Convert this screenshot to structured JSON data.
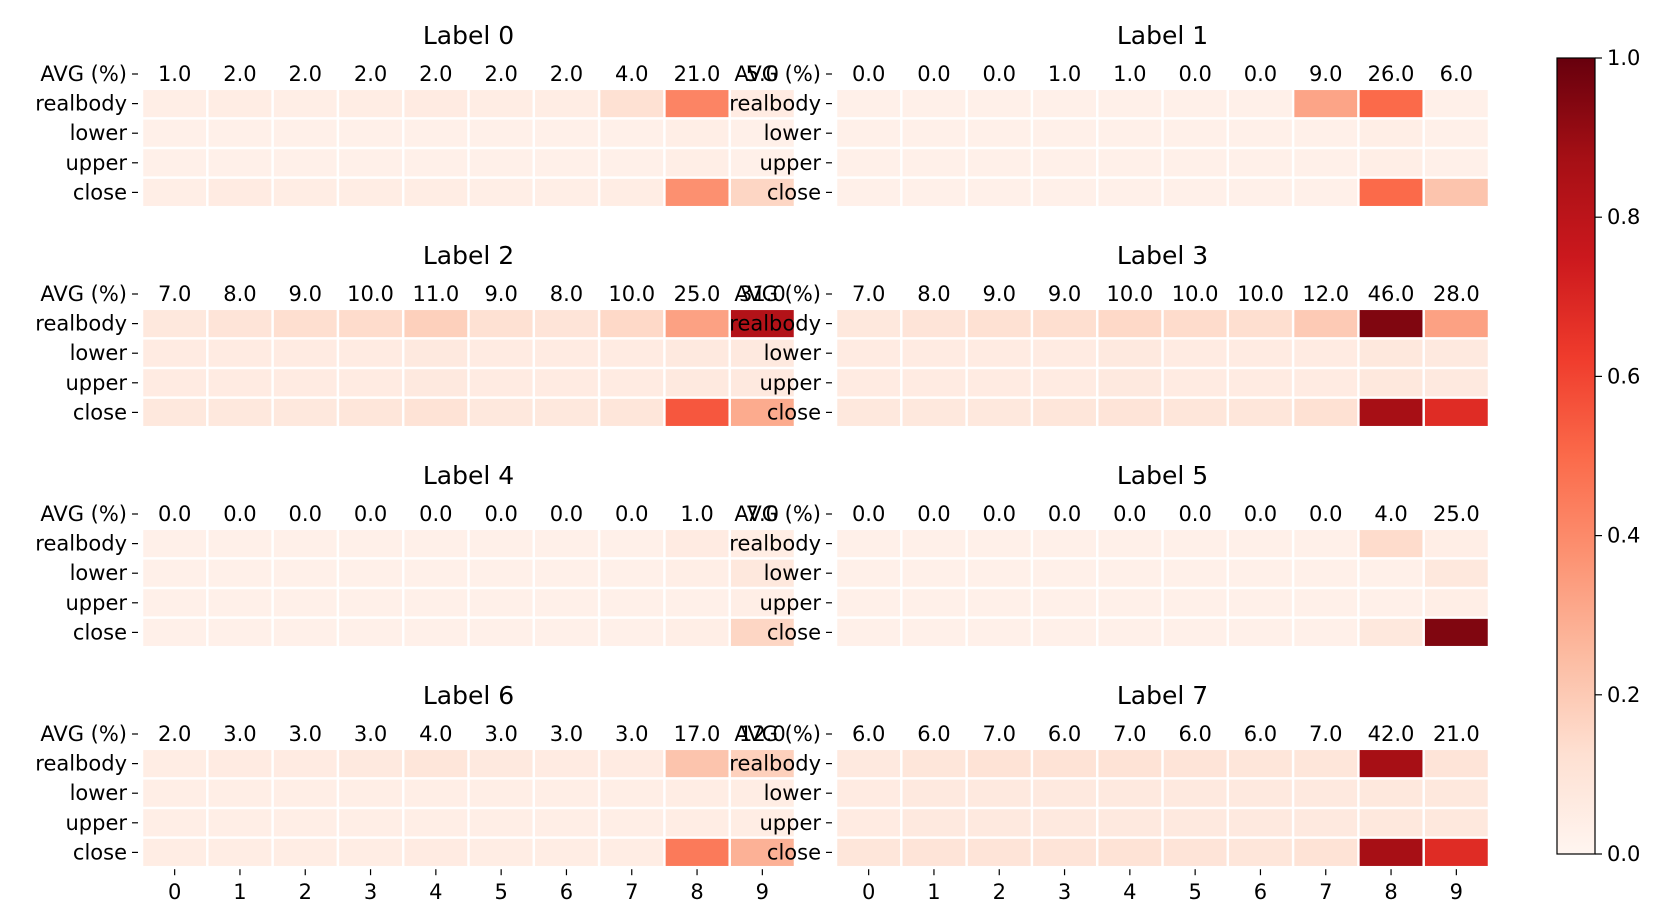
{
  "chart_data": {
    "type": "heatmap",
    "rows": [
      "AVG (%)",
      "realbody",
      "lower",
      "upper",
      "close"
    ],
    "x_ticks": [
      "0",
      "1",
      "2",
      "3",
      "4",
      "5",
      "6",
      "7",
      "8",
      "9"
    ],
    "colorscale": "Reds",
    "colorbar": {
      "range": [
        0.0,
        1.0
      ],
      "ticks": [
        {
          "value": 0.0,
          "label": "0.0"
        },
        {
          "value": 0.2,
          "label": "0.2"
        },
        {
          "value": 0.4,
          "label": "0.4"
        },
        {
          "value": 0.6,
          "label": "0.6"
        },
        {
          "value": 0.8,
          "label": "0.8"
        },
        {
          "value": 1.0,
          "label": "1.0"
        }
      ]
    },
    "panels": [
      {
        "title": "Label 0",
        "avg": [
          "1.0",
          "2.0",
          "2.0",
          "2.0",
          "2.0",
          "2.0",
          "2.0",
          "4.0",
          "21.0",
          "5.0"
        ],
        "values": [
          [
            0.04,
            0.05,
            0.04,
            0.05,
            0.06,
            0.05,
            0.05,
            0.12,
            0.42,
            0.06
          ],
          [
            0.03,
            0.03,
            0.03,
            0.03,
            0.03,
            0.03,
            0.03,
            0.03,
            0.04,
            0.03
          ],
          [
            0.03,
            0.03,
            0.03,
            0.03,
            0.03,
            0.03,
            0.03,
            0.03,
            0.04,
            0.03
          ],
          [
            0.04,
            0.06,
            0.05,
            0.05,
            0.05,
            0.04,
            0.04,
            0.05,
            0.38,
            0.16
          ]
        ]
      },
      {
        "title": "Label 1",
        "avg": [
          "0.0",
          "0.0",
          "0.0",
          "1.0",
          "1.0",
          "0.0",
          "0.0",
          "9.0",
          "26.0",
          "6.0"
        ],
        "values": [
          [
            0.03,
            0.03,
            0.03,
            0.03,
            0.03,
            0.03,
            0.03,
            0.32,
            0.5,
            0.03
          ],
          [
            0.03,
            0.03,
            0.03,
            0.03,
            0.03,
            0.03,
            0.03,
            0.03,
            0.04,
            0.03
          ],
          [
            0.03,
            0.03,
            0.03,
            0.03,
            0.03,
            0.03,
            0.03,
            0.03,
            0.04,
            0.03
          ],
          [
            0.03,
            0.03,
            0.03,
            0.03,
            0.03,
            0.03,
            0.03,
            0.03,
            0.5,
            0.22
          ]
        ]
      },
      {
        "title": "Label 2",
        "avg": [
          "7.0",
          "8.0",
          "9.0",
          "10.0",
          "11.0",
          "9.0",
          "8.0",
          "10.0",
          "25.0",
          "31.0"
        ],
        "values": [
          [
            0.08,
            0.1,
            0.13,
            0.14,
            0.18,
            0.12,
            0.1,
            0.15,
            0.33,
            0.83
          ],
          [
            0.06,
            0.06,
            0.06,
            0.06,
            0.07,
            0.06,
            0.06,
            0.06,
            0.07,
            0.07
          ],
          [
            0.06,
            0.06,
            0.06,
            0.06,
            0.07,
            0.06,
            0.06,
            0.06,
            0.07,
            0.07
          ],
          [
            0.08,
            0.08,
            0.08,
            0.09,
            0.11,
            0.08,
            0.08,
            0.09,
            0.55,
            0.3
          ]
        ]
      },
      {
        "title": "Label 3",
        "avg": [
          "7.0",
          "8.0",
          "9.0",
          "9.0",
          "10.0",
          "10.0",
          "10.0",
          "12.0",
          "46.0",
          "28.0"
        ],
        "values": [
          [
            0.08,
            0.1,
            0.12,
            0.13,
            0.15,
            0.14,
            0.13,
            0.2,
            0.95,
            0.33
          ],
          [
            0.06,
            0.06,
            0.06,
            0.06,
            0.07,
            0.06,
            0.06,
            0.06,
            0.08,
            0.07
          ],
          [
            0.06,
            0.06,
            0.06,
            0.06,
            0.07,
            0.06,
            0.06,
            0.06,
            0.08,
            0.07
          ],
          [
            0.08,
            0.08,
            0.08,
            0.09,
            0.1,
            0.09,
            0.09,
            0.12,
            0.87,
            0.68
          ]
        ]
      },
      {
        "title": "Label 4",
        "avg": [
          "0.0",
          "0.0",
          "0.0",
          "0.0",
          "0.0",
          "0.0",
          "0.0",
          "0.0",
          "1.0",
          "7.0"
        ],
        "values": [
          [
            0.03,
            0.03,
            0.03,
            0.03,
            0.03,
            0.03,
            0.03,
            0.03,
            0.06,
            0.05
          ],
          [
            0.03,
            0.03,
            0.03,
            0.03,
            0.03,
            0.03,
            0.03,
            0.03,
            0.04,
            0.08
          ],
          [
            0.03,
            0.03,
            0.03,
            0.03,
            0.03,
            0.03,
            0.03,
            0.03,
            0.03,
            0.04
          ],
          [
            0.03,
            0.03,
            0.03,
            0.03,
            0.03,
            0.03,
            0.03,
            0.03,
            0.04,
            0.16
          ]
        ]
      },
      {
        "title": "Label 5",
        "avg": [
          "0.0",
          "0.0",
          "0.0",
          "0.0",
          "0.0",
          "0.0",
          "0.0",
          "0.0",
          "4.0",
          "25.0"
        ],
        "values": [
          [
            0.03,
            0.03,
            0.03,
            0.03,
            0.03,
            0.03,
            0.03,
            0.03,
            0.14,
            0.04
          ],
          [
            0.03,
            0.03,
            0.03,
            0.03,
            0.03,
            0.03,
            0.03,
            0.03,
            0.03,
            0.08
          ],
          [
            0.03,
            0.03,
            0.03,
            0.03,
            0.03,
            0.03,
            0.03,
            0.03,
            0.03,
            0.04
          ],
          [
            0.03,
            0.03,
            0.03,
            0.03,
            0.03,
            0.03,
            0.03,
            0.03,
            0.08,
            0.95
          ]
        ]
      },
      {
        "title": "Label 6",
        "avg": [
          "2.0",
          "3.0",
          "3.0",
          "3.0",
          "4.0",
          "3.0",
          "3.0",
          "3.0",
          "17.0",
          "12.0"
        ],
        "values": [
          [
            0.05,
            0.06,
            0.06,
            0.07,
            0.09,
            0.07,
            0.06,
            0.06,
            0.22,
            0.18
          ],
          [
            0.04,
            0.04,
            0.04,
            0.04,
            0.04,
            0.04,
            0.04,
            0.04,
            0.05,
            0.05
          ],
          [
            0.04,
            0.04,
            0.04,
            0.04,
            0.04,
            0.04,
            0.04,
            0.04,
            0.05,
            0.05
          ],
          [
            0.05,
            0.05,
            0.05,
            0.05,
            0.06,
            0.05,
            0.05,
            0.05,
            0.45,
            0.28
          ]
        ]
      },
      {
        "title": "Label 7",
        "avg": [
          "6.0",
          "6.0",
          "7.0",
          "6.0",
          "7.0",
          "6.0",
          "6.0",
          "7.0",
          "42.0",
          "21.0"
        ],
        "values": [
          [
            0.07,
            0.09,
            0.11,
            0.11,
            0.11,
            0.1,
            0.09,
            0.09,
            0.87,
            0.1
          ],
          [
            0.06,
            0.07,
            0.07,
            0.07,
            0.07,
            0.07,
            0.07,
            0.07,
            0.08,
            0.08
          ],
          [
            0.06,
            0.07,
            0.07,
            0.07,
            0.07,
            0.07,
            0.07,
            0.07,
            0.08,
            0.08
          ],
          [
            0.09,
            0.1,
            0.1,
            0.1,
            0.11,
            0.1,
            0.09,
            0.11,
            0.87,
            0.68
          ]
        ]
      }
    ]
  }
}
